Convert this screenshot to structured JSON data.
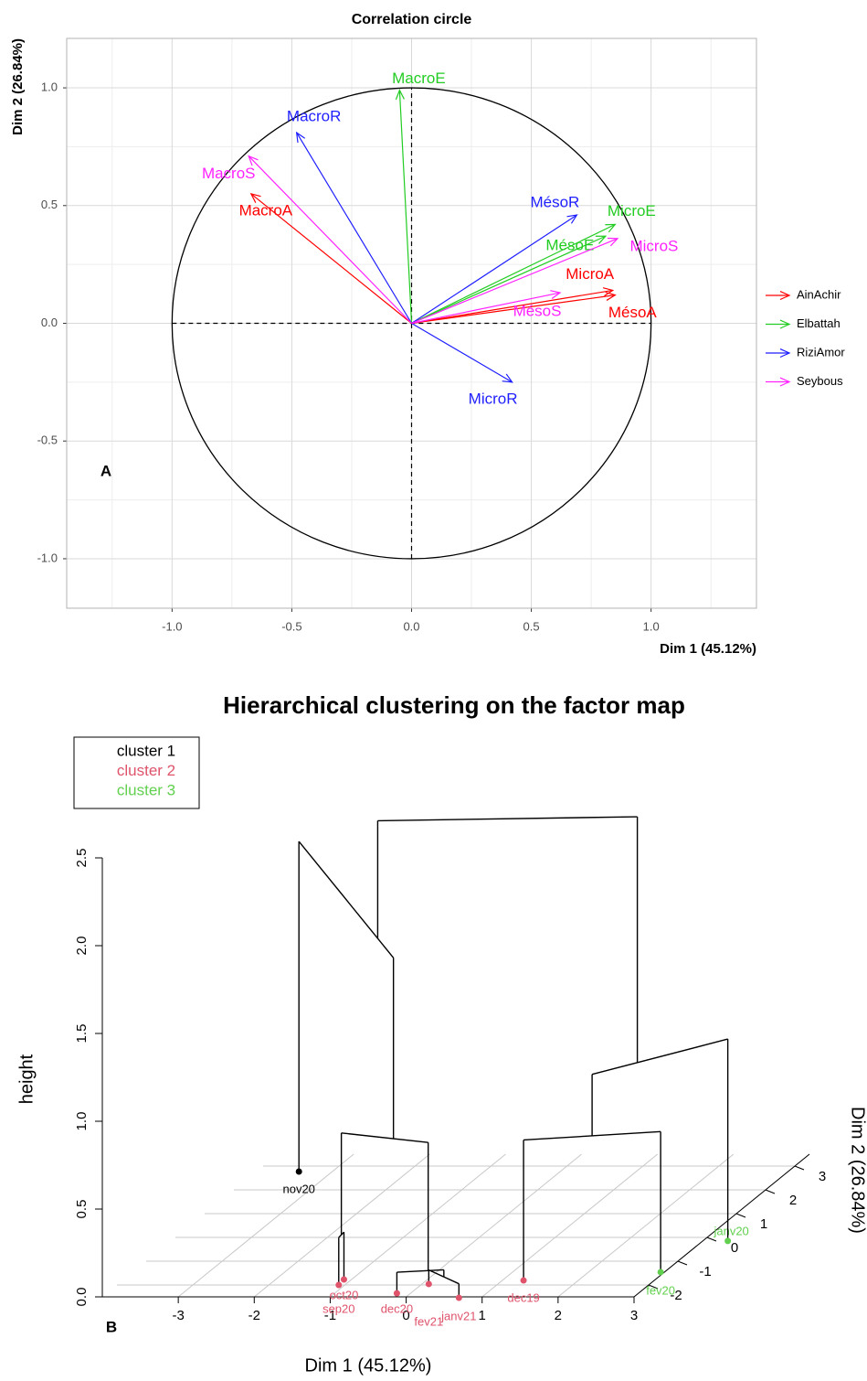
{
  "chart_data": [
    {
      "type": "correlation_circle",
      "title": "Correlation circle",
      "x_label": "Dim 1 (45.12%)",
      "y_label": "Dim 2 (26.84%)",
      "panel_label": "A",
      "xlim": [
        -1.44,
        1.44
      ],
      "ylim": [
        -1.21,
        1.21
      ],
      "xticks": [
        {
          "value": -1,
          "label": "-1.0"
        },
        {
          "value": -0.5,
          "label": "-0.5"
        },
        {
          "value": 0,
          "label": "0.0"
        },
        {
          "value": 0.5,
          "label": "0.5"
        },
        {
          "value": 1,
          "label": "1.0"
        }
      ],
      "yticks": [
        {
          "value": -1,
          "label": "-1.0"
        },
        {
          "value": -0.5,
          "label": "-0.5"
        },
        {
          "value": 0,
          "label": "0.0"
        },
        {
          "value": 0.5,
          "label": "0.5"
        },
        {
          "value": 1,
          "label": "1.0"
        }
      ],
      "grid": true,
      "legend": "right",
      "series": [
        {
          "name": "AinAchir",
          "color": "#ff0000",
          "labels": [
            "MacroA",
            "MicroA",
            "MésoA"
          ],
          "x": [
            -0.67,
            0.84,
            0.85
          ],
          "y": [
            0.55,
            0.14,
            0.12
          ]
        },
        {
          "name": "Elbattah",
          "color": "#22cc22",
          "labels": [
            "MacroE",
            "MicroE",
            "MésoE"
          ],
          "x": [
            -0.05,
            0.85,
            0.81
          ],
          "y": [
            0.99,
            0.42,
            0.37
          ]
        },
        {
          "name": "RiziAmor",
          "color": "#1f1fff",
          "labels": [
            "MacroR",
            "MésoR",
            "MicroR"
          ],
          "x": [
            -0.48,
            0.69,
            0.42
          ],
          "y": [
            0.81,
            0.46,
            -0.25
          ]
        },
        {
          "name": "Seybous",
          "color": "#ff22ff",
          "labels": [
            "MacroS",
            "MicroS",
            "MésoS"
          ],
          "x": [
            -0.68,
            0.86,
            0.62
          ],
          "y": [
            0.71,
            0.36,
            0.13
          ]
        }
      ]
    },
    {
      "type": "dendrogram3d",
      "title": "Hierarchical clustering on the factor map",
      "x_label": "Dim 1 (45.12%)",
      "y_label": "Dim 2 (26.84%)",
      "z_label": "height",
      "panel_label": "B",
      "xlim": [
        -4,
        3
      ],
      "ylim": [
        -2.5,
        3.5
      ],
      "zlim": [
        0,
        2.5
      ],
      "xticks": [
        -3,
        -2,
        -1,
        0,
        1,
        2,
        3
      ],
      "yticks": [
        -2,
        -1,
        0,
        1,
        2,
        3
      ],
      "zticks": [
        {
          "value": 0,
          "label": "0.0"
        },
        {
          "value": 0.5,
          "label": "0.5"
        },
        {
          "value": 1,
          "label": "1.0"
        },
        {
          "value": 1.5,
          "label": "1.5"
        },
        {
          "value": 2,
          "label": "2.0"
        },
        {
          "value": 2.5,
          "label": "2.5"
        }
      ],
      "clusters": [
        {
          "name": "cluster 1",
          "color": "#000000",
          "labels": [
            "nov20"
          ],
          "x": [
            -3.44
          ],
          "y": [
            2.77
          ]
        },
        {
          "name": "cluster 2",
          "color": "#df536b",
          "labels": [
            "oct20",
            "sep20",
            "dec20",
            "fev21",
            "janv21",
            "dec19"
          ],
          "x": [
            -1.1,
            -1.08,
            -0.18,
            0.09,
            0.71,
            1.28
          ],
          "y": [
            -1.77,
            -2.0,
            -2.35,
            -1.96,
            -2.54,
            -1.81
          ]
        },
        {
          "name": "cluster 3",
          "color": "#61d04f",
          "labels": [
            "fev20",
            "janv20"
          ],
          "x": [
            2.95,
            3.33
          ],
          "y": [
            -1.46,
            -0.15
          ]
        }
      ],
      "merges": [
        {
          "children": [
            "oct20",
            "sep20"
          ],
          "height": 0.27
        },
        {
          "children": [
            "fev21",
            "janv21"
          ],
          "height": 0.08
        },
        {
          "children": [
            "dec20",
            1
          ],
          "height": 0.12
        },
        {
          "children": [
            0,
            2
          ],
          "height": 0.85
        },
        {
          "children": [
            "nov20",
            3
          ],
          "height": 1.88
        },
        {
          "children": [
            "dec19",
            "fev20"
          ],
          "height": 0.8
        },
        {
          "children": [
            5,
            "janv20"
          ],
          "height": 1.15
        },
        {
          "children": [
            4,
            6
          ],
          "height": 2.55
        }
      ]
    }
  ]
}
